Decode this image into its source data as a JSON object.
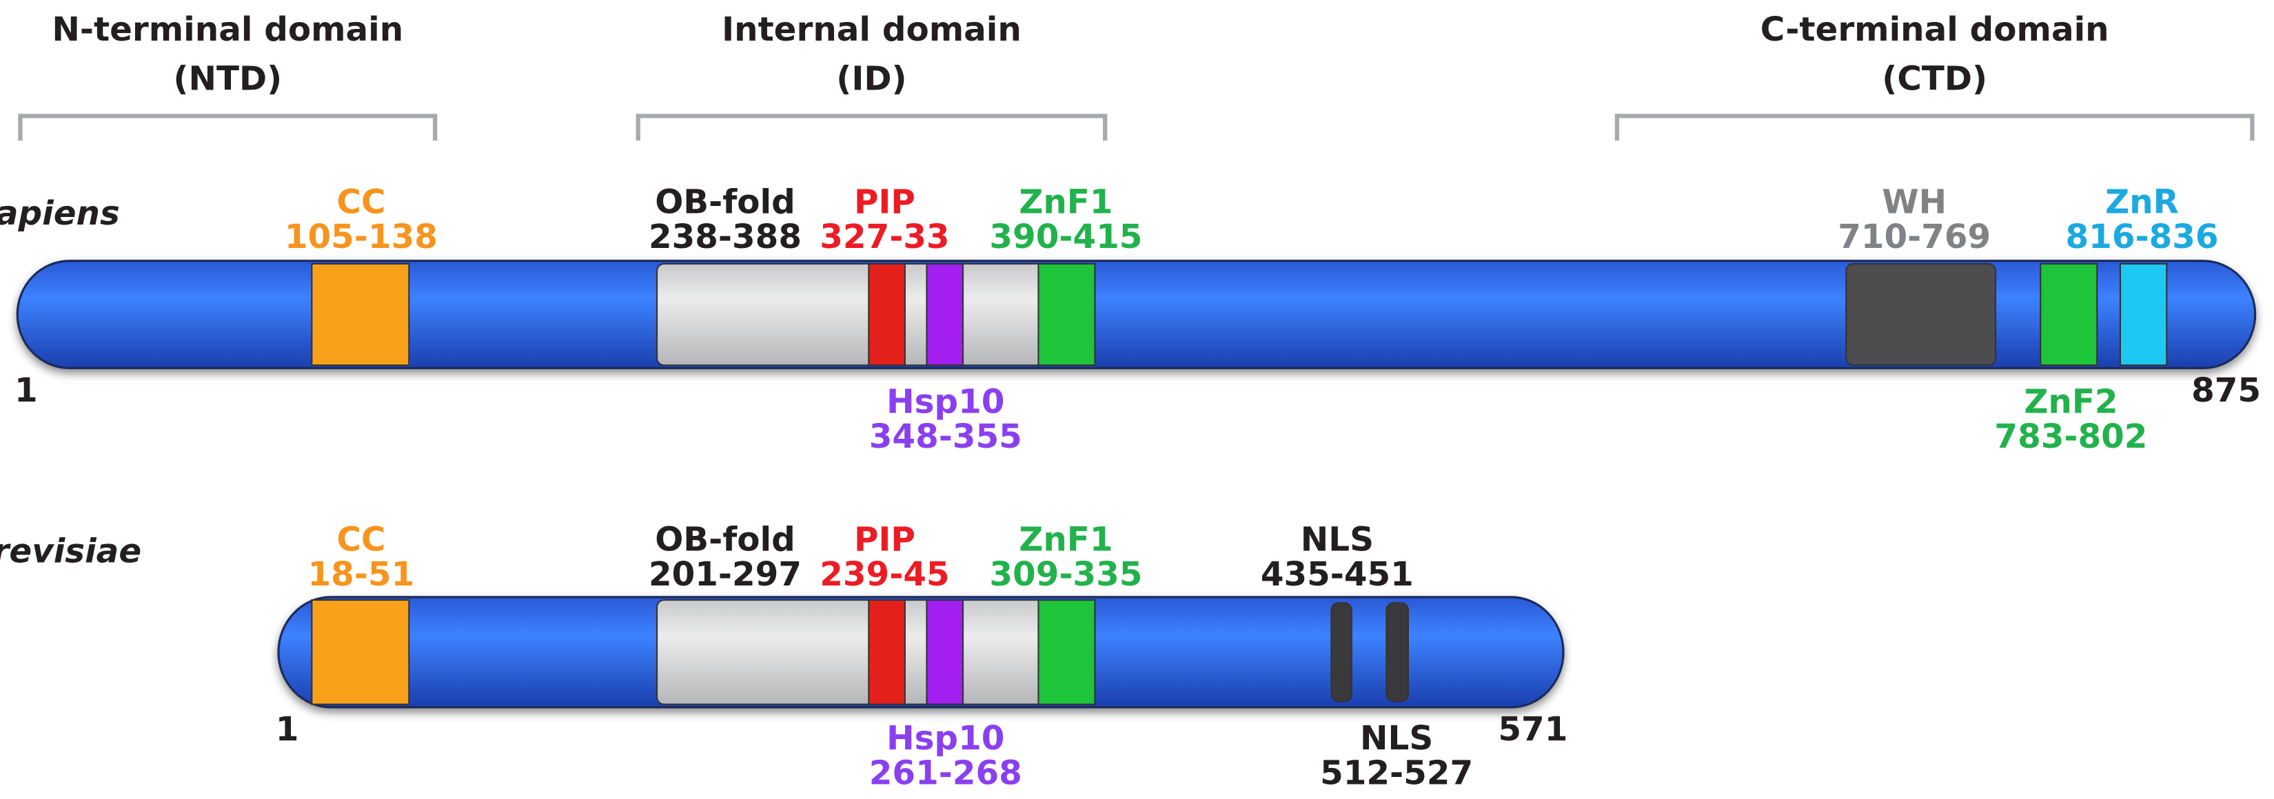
{
  "domains": [
    {
      "name": "N-terminal domain",
      "abbr": "(NTD)"
    },
    {
      "name": "Internal domain",
      "abbr": "(ID)"
    },
    {
      "name": "C-terminal domain",
      "abbr": "(CTD)"
    }
  ],
  "proteins": [
    {
      "species": "H. sapiens",
      "start": 1,
      "end": 875,
      "features": [
        {
          "name": "CC",
          "range": "105-138"
        },
        {
          "name": "OB-fold",
          "range": "238-388"
        },
        {
          "name": "PIP",
          "range": "327-33"
        },
        {
          "name": "Hsp10",
          "range": "348-355"
        },
        {
          "name": "ZnF1",
          "range": "390-415"
        },
        {
          "name": "WH",
          "range": "710-769"
        },
        {
          "name": "ZnF2",
          "range": "783-802"
        },
        {
          "name": "ZnR",
          "range": "816-836"
        }
      ]
    },
    {
      "species": "S. cerevisiae",
      "start": 1,
      "end": 571,
      "features": [
        {
          "name": "CC",
          "range": "18-51"
        },
        {
          "name": "OB-fold",
          "range": "201-297"
        },
        {
          "name": "PIP",
          "range": "239-45"
        },
        {
          "name": "Hsp10",
          "range": "261-268"
        },
        {
          "name": "ZnF1",
          "range": "309-335"
        },
        {
          "name": "NLS",
          "range": "435-451"
        },
        {
          "name": "NLS",
          "range": "512-527"
        }
      ]
    }
  ]
}
